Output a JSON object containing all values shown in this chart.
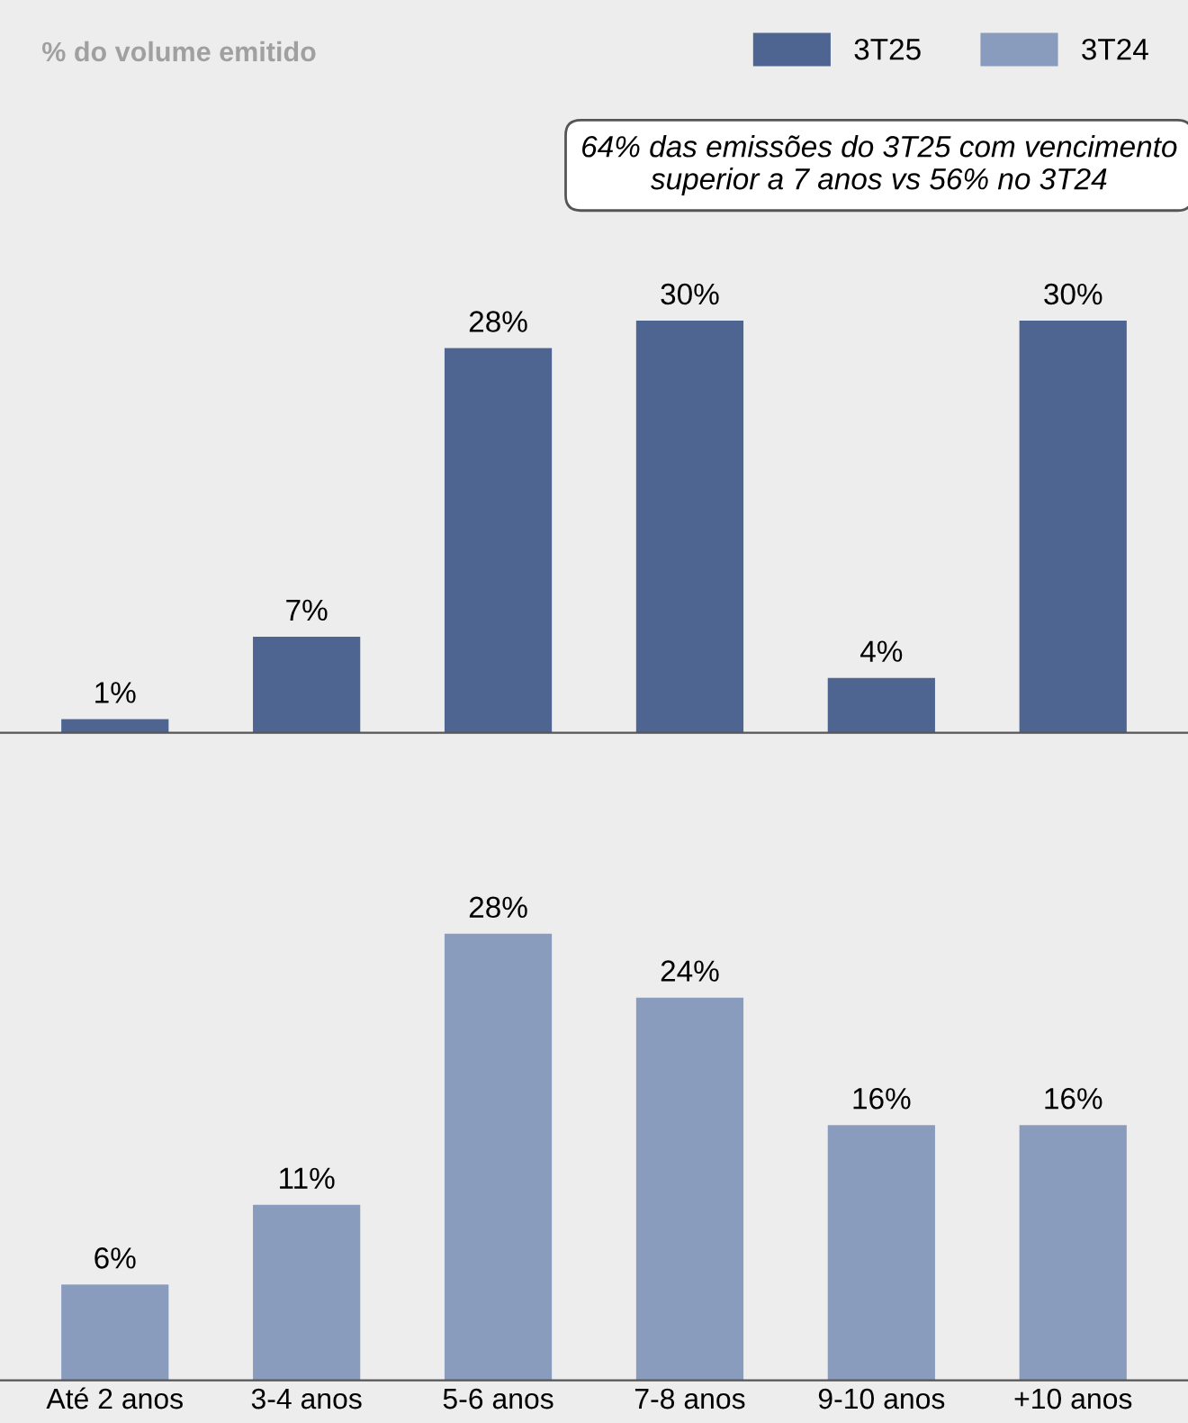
{
  "chart_data": [
    {
      "type": "bar",
      "title": "% do volume emitido",
      "categories": [
        null,
        null,
        null,
        null,
        null,
        null
      ],
      "series": [
        {
          "name": "3T25",
          "color": "#4f6591",
          "values": [
            1,
            7,
            28,
            30,
            4,
            30
          ],
          "value_labels": [
            "1%",
            "7%",
            "28%",
            "30%",
            "4%",
            "30%"
          ]
        }
      ],
      "annotations": [
        "64% das emissões do 3T25 com vencimento superior a 7 anos vs 56% no 3T24"
      ],
      "legend": "top right",
      "grid": false
    },
    {
      "type": "bar",
      "categories": [
        "Até 2 anos",
        "3-4 anos",
        "5-6 anos",
        "7-8 anos",
        "9-10 anos",
        "+10 anos"
      ],
      "series": [
        {
          "name": "3T24",
          "color": "#8a9cbe",
          "values": [
            6,
            11,
            28,
            24,
            16,
            16
          ],
          "value_labels": [
            "6%",
            "11%",
            "28%",
            "24%",
            "16%",
            "16%"
          ]
        }
      ],
      "legend": "top right",
      "tick_labels": "x",
      "grid": false
    }
  ]
}
